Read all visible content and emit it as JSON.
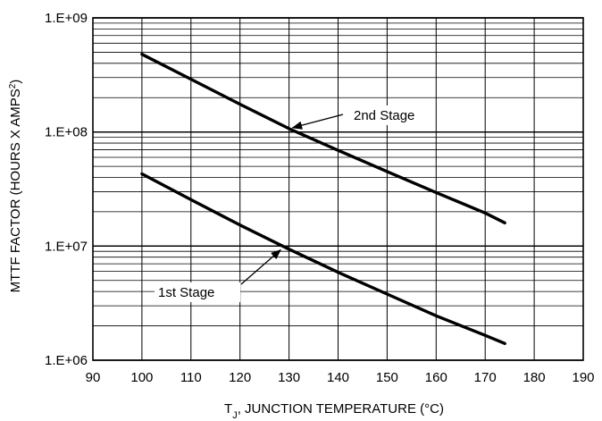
{
  "chart_data": {
    "type": "line",
    "xlabel_main": "T",
    "xlabel_sub": "J",
    "xlabel_rest": ", JUNCTION TEMPERATURE (°C)",
    "ylabel_main": "MTTF FACTOR (HOURS X AMPS",
    "ylabel_sup": "2",
    "ylabel_end": ")",
    "xlim": [
      90,
      190
    ],
    "ylim": [
      1000000,
      1000000000
    ],
    "yscale": "log",
    "grid": true,
    "x_ticks": [
      90,
      100,
      110,
      120,
      130,
      140,
      150,
      160,
      170,
      180,
      190
    ],
    "x_tick_labels": [
      "90",
      "100",
      "110",
      "120",
      "130",
      "140",
      "150",
      "160",
      "170",
      "180",
      "190"
    ],
    "y_ticks": [
      1000000,
      10000000,
      100000000,
      1000000000
    ],
    "y_tick_labels": [
      "1.E+06",
      "1.E+07",
      "1.E+08",
      "1.E+09"
    ],
    "series": [
      {
        "name": "2nd Stage",
        "x": [
          100,
          110,
          120,
          130,
          140,
          150,
          160,
          170,
          174
        ],
        "y": [
          480000000,
          290000000,
          175000000,
          107000000,
          69000000,
          45000000,
          29500000,
          19500000,
          16000000
        ]
      },
      {
        "name": "1st Stage",
        "x": [
          100,
          110,
          120,
          130,
          140,
          150,
          160,
          170,
          174
        ],
        "y": [
          43000000,
          25500000,
          15300000,
          9400000,
          5900000,
          3800000,
          2450000,
          1650000,
          1400000
        ]
      }
    ],
    "annotations": [
      {
        "text": "2nd Stage",
        "x": 130,
        "y": 107000000
      },
      {
        "text": "1st Stage",
        "x": 129,
        "y": 9600000
      }
    ],
    "line_color": "#000000",
    "grid_color": "#000000"
  }
}
